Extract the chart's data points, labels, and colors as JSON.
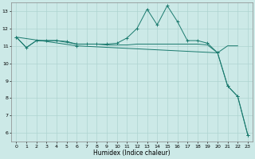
{
  "xlabel": "Humidex (Indice chaleur)",
  "x": [
    0,
    1,
    2,
    3,
    4,
    5,
    6,
    7,
    8,
    9,
    10,
    11,
    12,
    13,
    14,
    15,
    16,
    17,
    18,
    19,
    20,
    21,
    22,
    23
  ],
  "line_spiky": [
    11.5,
    10.9,
    11.3,
    11.3,
    11.3,
    11.25,
    11.1,
    11.1,
    11.1,
    11.1,
    11.15,
    11.45,
    12.0,
    13.1,
    12.2,
    13.3,
    12.4,
    11.3,
    11.3,
    11.15,
    10.6,
    8.7,
    8.1,
    5.9
  ],
  "line_flat": [
    11.5,
    10.9,
    11.3,
    11.3,
    11.3,
    11.2,
    11.1,
    11.1,
    11.1,
    11.05,
    11.05,
    11.05,
    11.1,
    11.1,
    11.1,
    11.1,
    11.1,
    11.1,
    11.1,
    11.05,
    10.6,
    11.0,
    11.0,
    null
  ],
  "line_diag_x": [
    0,
    6,
    20,
    21,
    22,
    23
  ],
  "line_diag_y": [
    11.5,
    11.0,
    10.6,
    8.7,
    8.1,
    5.9
  ],
  "bg_color": "#cce9e7",
  "line_color": "#1a7a6e",
  "grid_color": "#aed4d1",
  "ylim": [
    5.5,
    13.5
  ],
  "xlim": [
    -0.5,
    23.5
  ],
  "yticks": [
    6,
    7,
    8,
    9,
    10,
    11,
    12,
    13
  ],
  "xticks": [
    0,
    1,
    2,
    3,
    4,
    5,
    6,
    7,
    8,
    9,
    10,
    11,
    12,
    13,
    14,
    15,
    16,
    17,
    18,
    19,
    20,
    21,
    22,
    23
  ]
}
